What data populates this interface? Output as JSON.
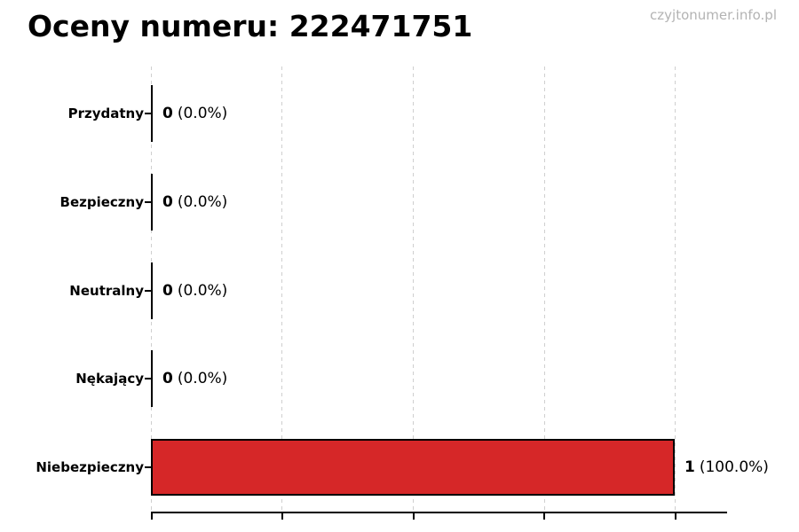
{
  "header": {
    "title": "Oceny numeru: 222471751",
    "watermark": "czyjtonumer.info.pl"
  },
  "chart_data": {
    "type": "bar",
    "orientation": "horizontal",
    "title": "Oceny numeru: 222471751",
    "xlabel": "",
    "ylabel": "",
    "categories": [
      "Przydatny",
      "Bezpieczny",
      "Neutralny",
      "Nękający",
      "Niebezpieczny"
    ],
    "values": [
      0,
      0,
      0,
      0,
      1
    ],
    "percentages": [
      0.0,
      0.0,
      0.0,
      0.0,
      100.0
    ],
    "value_labels": [
      "0 (0.0%)",
      "0 (0.0%)",
      "0 (0.0%)",
      "0 (0.0%)",
      "1 (100.0%)"
    ],
    "xlim": [
      0,
      1.1
    ],
    "xmax": 1.1,
    "xticks": [
      0,
      0.25,
      0.5,
      0.75,
      1.0
    ],
    "grid": "vertical dashed",
    "grid_color": "#cfcfcf",
    "bar_color": "#d62728",
    "bar_edge_color": "#000000",
    "legend": "none",
    "rows": [
      {
        "label": "Przydatny",
        "value": 0,
        "count": "0",
        "pct": "(0.0%)"
      },
      {
        "label": "Bezpieczny",
        "value": 0,
        "count": "0",
        "pct": "(0.0%)"
      },
      {
        "label": "Neutralny",
        "value": 0,
        "count": "0",
        "pct": "(0.0%)"
      },
      {
        "label": "Nękający",
        "value": 0,
        "count": "0",
        "pct": "(0.0%)"
      },
      {
        "label": "Niebezpieczny",
        "value": 1,
        "count": "1",
        "pct": "(100.0%)"
      }
    ]
  }
}
